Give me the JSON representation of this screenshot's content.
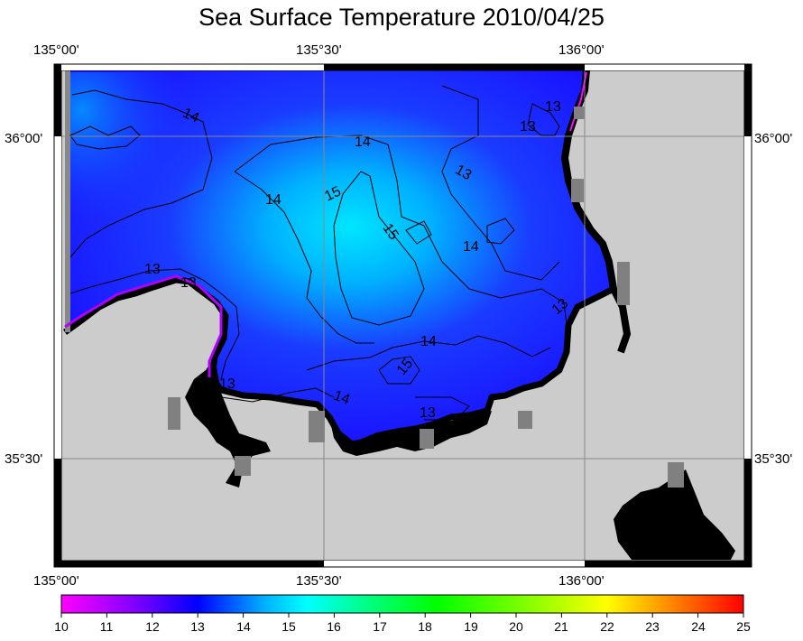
{
  "title": "Sea Surface Temperature 2010/04/25",
  "axes": {
    "top_lon": [
      "135°00'",
      "135°30'",
      "136°00'"
    ],
    "bottom_lon": [
      "135°00'",
      "135°30'",
      "136°00'"
    ],
    "left_lat": [
      "36°00'",
      "35°30'"
    ],
    "right_lat": [
      "36°00'",
      "35°30'"
    ]
  },
  "contours": [
    "14",
    "14",
    "13",
    "14",
    "15",
    "15",
    "13",
    "13",
    "14",
    "13",
    "13",
    "13",
    "14",
    "14",
    "15",
    "13",
    "13",
    "13"
  ],
  "colorbar": {
    "ticks": [
      "10",
      "11",
      "12",
      "13",
      "14",
      "15",
      "16",
      "17",
      "18",
      "19",
      "20",
      "21",
      "22",
      "23",
      "24",
      "25"
    ],
    "colors": [
      "#ff00ff",
      "#8a00ff",
      "#0000ff",
      "#00b4ff",
      "#00ffff",
      "#00ff80",
      "#00ff00",
      "#80ff00",
      "#ffff00",
      "#ff8000",
      "#ff0000"
    ]
  },
  "colors": {
    "land": "#cccccc",
    "coast": "#000000",
    "frame": "#000000"
  }
}
